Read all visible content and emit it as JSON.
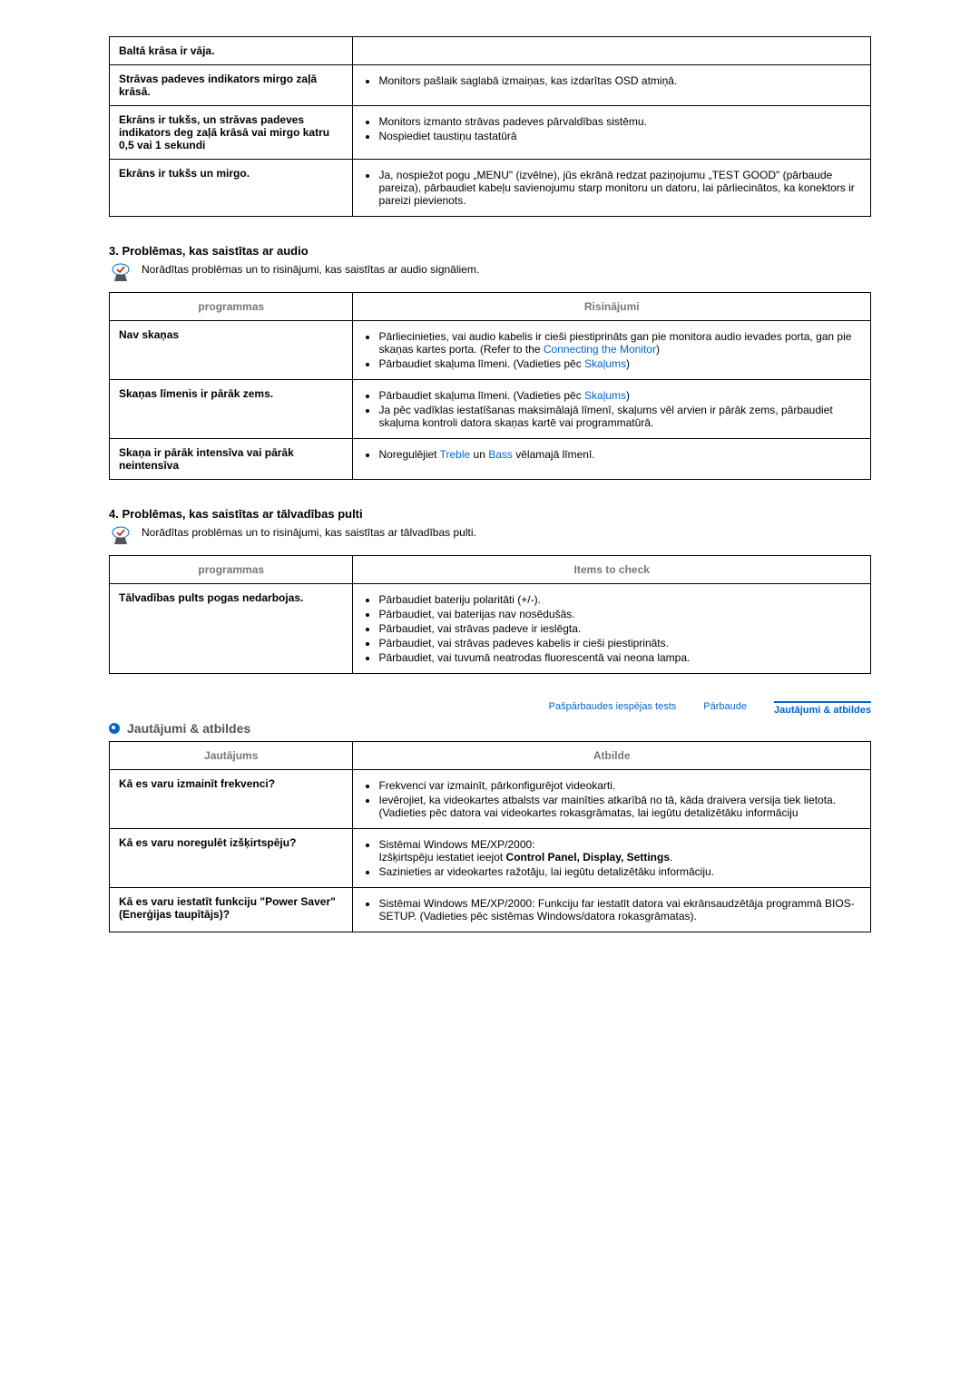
{
  "table1": {
    "rows": [
      {
        "left": "Baltā krāsa ir vāja.",
        "items": []
      },
      {
        "left": "Strāvas padeves indikators mirgo zaļā krāsā.",
        "items": [
          "Monitors pašlaik saglabā izmaiņas, kas izdarītas OSD atmiņā."
        ]
      },
      {
        "left": "Ekrāns ir tukšs, un strāvas padeves indikators deg zaļā krāsā vai mirgo katru 0,5 vai 1 sekundi",
        "items": [
          "Monitors izmanto strāvas padeves pārvaldības sistēmu.",
          "Nospiediet taustiņu tastatūrā"
        ]
      },
      {
        "left": "Ekrāns ir tukšs un mirgo.",
        "items": [
          "Ja, nospiežot pogu „MENU\" (izvēlne), jūs ekrānā redzat paziņojumu „TEST GOOD\" (pārbaude pareiza), pārbaudiet kabeļu savienojumu starp monitoru un datoru, lai pārliecinātos, ka konektors ir pareizi pievienots."
        ]
      }
    ]
  },
  "section3": {
    "title": "3. Problēmas, kas saistītas ar audio",
    "desc": "Norādītas problēmas un to risinājumi, kas saistītas ar audio signāliem.",
    "col1": "programmas",
    "col2": "Risinājumi",
    "rows": [
      {
        "left": "Nav skaņas",
        "items": [
          {
            "pre": "Pārliecinieties, vai audio kabelis ir cieši piestiprināts gan pie monitora audio ievades porta, gan pie skaņas kartes porta. (Refer to the ",
            "link": "Connecting the Monitor",
            "post": ")"
          },
          {
            "pre": "Pārbaudiet skaļuma līmeni. (Vadieties pēc ",
            "link": "Skaļums",
            "post": ")"
          }
        ]
      },
      {
        "left": "Skaņas līmenis ir pārāk zems.",
        "items": [
          {
            "pre": "Pārbaudiet skaļuma līmeni. (Vadieties pēc ",
            "link": "Skaļums",
            "post": ")"
          },
          {
            "pre": "Ja pēc vadīklas iestatīšanas maksimālajā līmenī, skaļums vēl arvien ir pārāk zems, pārbaudiet skaļuma kontroli datora skaņas kartē vai programmatūrā."
          }
        ]
      },
      {
        "left": "Skaņa ir pārāk intensīva vai pārāk neintensīva",
        "items": [
          {
            "pre": "Noregulējiet ",
            "link": "Treble",
            "mid": " un ",
            "link2": "Bass",
            "post": " vēlamajā līmenī."
          }
        ]
      }
    ]
  },
  "section4": {
    "title": "4. Problēmas, kas saistītas ar tālvadības pulti",
    "desc": "Norādītas problēmas un to risinājumi, kas saistītas ar tālvadības pulti.",
    "col1": "programmas",
    "col2": "Items to check",
    "rows": [
      {
        "left": "Tālvadības pults pogas nedarbojas.",
        "items": [
          "Pārbaudiet bateriju polaritāti (+/-).",
          "Pārbaudiet, vai baterijas nav nosēdušās.",
          "Pārbaudiet, vai strāvas padeve ir ieslēgta.",
          "Pārbaudiet, vai strāvas padeves kabelis ir cieši piestiprināts.",
          "Pārbaudiet, vai tuvumā neatrodas fluorescentā vai neona lampa."
        ]
      }
    ]
  },
  "tabs": {
    "t1": "Pašpārbaudes iespējas tests",
    "t2": "Pārbaude",
    "t3": "Jautājumi & atbildes"
  },
  "qa": {
    "title": "Jautājumi & atbildes",
    "col1": "Jautājums",
    "col2": "Atbilde",
    "rows": [
      {
        "left": "Kā es varu izmainīt frekvenci?",
        "items": [
          "Frekvenci var izmainīt, pārkonfigurējot videokarti.",
          "Ievērojiet, ka videokartes atbalsts var mainīties atkarībā no tā, kāda draivera versija tiek lietota. (Vadieties pēc datora vai videokartes rokasgrāmatas, lai iegūtu detalizētāku informāciju"
        ]
      },
      {
        "left": "Kā es varu noregulēt izšķirtspēju?",
        "html": "second"
      },
      {
        "left": "Kā es varu iestatīt funkciju \"Power Saver\" (Enerģijas taupītājs)?",
        "items": [
          "Sistēmai Windows ME/XP/2000: Funkciju far iestatīt datora vai ekrānsaudzētāja programmā BIOS-SETUP. (Vadieties pēc sistēmas Windows/datora rokasgrāmatas)."
        ]
      }
    ],
    "row2_line1": "Sistēmai Windows ME/XP/2000:",
    "row2_line2_pre": "Izšķirtspēju iestatiet ieejot ",
    "row2_line2_bold": "Control Panel, Display, Settings",
    "row2_line3": "Sazinieties ar videokartes ražotāju, lai iegūtu detalizētāku informāciju."
  }
}
